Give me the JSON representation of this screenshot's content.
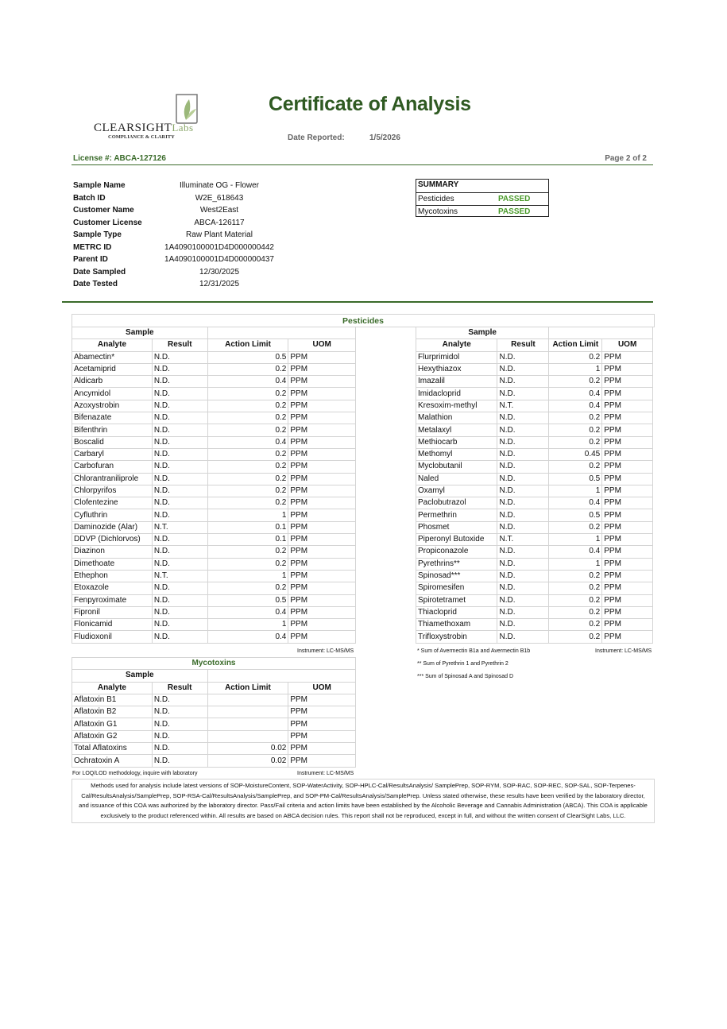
{
  "header": {
    "logo_text": "CLEARSIGHT",
    "logo_suffix": "Labs",
    "logo_tagline": "COMPLIANCE & CLARITY",
    "title": "Certificate of Analysis",
    "date_reported_label": "Date Reported:",
    "date_reported": "1/5/2026",
    "license": "License #: ABCA-127126",
    "page": "Page 2 of 2"
  },
  "sample_info": [
    {
      "k": "Sample Name",
      "v": "Illuminate OG - Flower"
    },
    {
      "k": "Batch ID",
      "v": "W2E_618643"
    },
    {
      "k": "Customer Name",
      "v": "West2East"
    },
    {
      "k": "Customer License",
      "v": "ABCA-126117"
    },
    {
      "k": "Sample Type",
      "v": "Raw Plant Material"
    },
    {
      "k": "METRC ID",
      "v": "1A4090100001D4D000000442"
    },
    {
      "k": "Parent ID",
      "v": "1A4090100001D4D000000437"
    },
    {
      "k": "Date Sampled",
      "v": "12/30/2025"
    },
    {
      "k": "Date Tested",
      "v": "12/31/2025"
    }
  ],
  "summary": {
    "title": "SUMMARY",
    "rows": [
      {
        "name": "Pesticides",
        "status": "PASSED"
      },
      {
        "name": "Mycotoxins",
        "status": "PASSED"
      }
    ],
    "pass_color": "#4a9a2a"
  },
  "pesticides": {
    "title": "Pesticides",
    "sample_label": "Sample",
    "columns": [
      "Analyte",
      "Result",
      "Action Limit",
      "UOM"
    ],
    "left": [
      [
        "Abamectin*",
        "N.D.",
        "0.5",
        "PPM"
      ],
      [
        "Acetamiprid",
        "N.D.",
        "0.2",
        "PPM"
      ],
      [
        "Aldicarb",
        "N.D.",
        "0.4",
        "PPM"
      ],
      [
        "Ancymidol",
        "N.D.",
        "0.2",
        "PPM"
      ],
      [
        "Azoxystrobin",
        "N.D.",
        "0.2",
        "PPM"
      ],
      [
        "Bifenazate",
        "N.D.",
        "0.2",
        "PPM"
      ],
      [
        "Bifenthrin",
        "N.D.",
        "0.2",
        "PPM"
      ],
      [
        "Boscalid",
        "N.D.",
        "0.4",
        "PPM"
      ],
      [
        "Carbaryl",
        "N.D.",
        "0.2",
        "PPM"
      ],
      [
        "Carbofuran",
        "N.D.",
        "0.2",
        "PPM"
      ],
      [
        "Chlorantraniliprole",
        "N.D.",
        "0.2",
        "PPM"
      ],
      [
        "Chlorpyrifos",
        "N.D.",
        "0.2",
        "PPM"
      ],
      [
        "Clofentezine",
        "N.D.",
        "0.2",
        "PPM"
      ],
      [
        "Cyfluthrin",
        "N.D.",
        "1",
        "PPM"
      ],
      [
        "Daminozide (Alar)",
        "N.T.",
        "0.1",
        "PPM"
      ],
      [
        "DDVP (Dichlorvos)",
        "N.D.",
        "0.1",
        "PPM"
      ],
      [
        "Diazinon",
        "N.D.",
        "0.2",
        "PPM"
      ],
      [
        "Dimethoate",
        "N.D.",
        "0.2",
        "PPM"
      ],
      [
        "Ethephon",
        "N.T.",
        "1",
        "PPM"
      ],
      [
        "Etoxazole",
        "N.D.",
        "0.2",
        "PPM"
      ],
      [
        "Fenpyroximate",
        "N.D.",
        "0.5",
        "PPM"
      ],
      [
        "Fipronil",
        "N.D.",
        "0.4",
        "PPM"
      ],
      [
        "Flonicamid",
        "N.D.",
        "1",
        "PPM"
      ],
      [
        "Fludioxonil",
        "N.D.",
        "0.4",
        "PPM"
      ]
    ],
    "right": [
      [
        "Flurprimidol",
        "N.D.",
        "0.2",
        "PPM"
      ],
      [
        "Hexythiazox",
        "N.D.",
        "1",
        "PPM"
      ],
      [
        "Imazalil",
        "N.D.",
        "0.2",
        "PPM"
      ],
      [
        "Imidacloprid",
        "N.D.",
        "0.4",
        "PPM"
      ],
      [
        "Kresoxim-methyl",
        "N.T.",
        "0.4",
        "PPM"
      ],
      [
        "Malathion",
        "N.D.",
        "0.2",
        "PPM"
      ],
      [
        "Metalaxyl",
        "N.D.",
        "0.2",
        "PPM"
      ],
      [
        "Methiocarb",
        "N.D.",
        "0.2",
        "PPM"
      ],
      [
        "Methomyl",
        "N.D.",
        "0.45",
        "PPM"
      ],
      [
        "Myclobutanil",
        "N.D.",
        "0.2",
        "PPM"
      ],
      [
        "Naled",
        "N.D.",
        "0.5",
        "PPM"
      ],
      [
        "Oxamyl",
        "N.D.",
        "1",
        "PPM"
      ],
      [
        "Paclobutrazol",
        "N.D.",
        "0.4",
        "PPM"
      ],
      [
        "Permethrin",
        "N.D.",
        "0.5",
        "PPM"
      ],
      [
        "Phosmet",
        "N.D.",
        "0.2",
        "PPM"
      ],
      [
        "Piperonyl Butoxide",
        "N.T.",
        "1",
        "PPM"
      ],
      [
        "Propiconazole",
        "N.D.",
        "0.4",
        "PPM"
      ],
      [
        "Pyrethrins**",
        "N.D.",
        "1",
        "PPM"
      ],
      [
        "Spinosad***",
        "N.D.",
        "0.2",
        "PPM"
      ],
      [
        "Spiromesifen",
        "N.D.",
        "0.2",
        "PPM"
      ],
      [
        "Spirotetramet",
        "N.D.",
        "0.2",
        "PPM"
      ],
      [
        "Thiacloprid",
        "N.D.",
        "0.2",
        "PPM"
      ],
      [
        "Thiamethoxam",
        "N.D.",
        "0.2",
        "PPM"
      ],
      [
        "Trifloxystrobin",
        "N.D.",
        "0.2",
        "PPM"
      ]
    ],
    "instrument": "Instrument: LC-MS/MS",
    "footnotes": [
      "* Sum of Avermectin B1a and Avermectin B1b",
      "** Sum of Pyrethrin 1 and Pyrethrin 2",
      "*** Sum of Spinosad A and Spinosad D"
    ]
  },
  "mycotoxins": {
    "title": "Mycotoxins",
    "sample_label": "Sample",
    "columns": [
      "Analyte",
      "Result",
      "Action Limit",
      "UOM"
    ],
    "rows": [
      [
        "Aflatoxin B1",
        "N.D.",
        "",
        "PPM"
      ],
      [
        "Aflatoxin B2",
        "N.D.",
        "",
        "PPM"
      ],
      [
        "Aflatoxin G1",
        "N.D.",
        "",
        "PPM"
      ],
      [
        "Aflatoxin G2",
        "N.D.",
        "",
        "PPM"
      ],
      [
        "Total Aflatoxins",
        "N.D.",
        "0.02",
        "PPM"
      ],
      [
        "Ochratoxin A",
        "N.D.",
        "0.02",
        "PPM"
      ]
    ],
    "loq_note": "For LOQ/LOD methodology, inquire with laboratory",
    "instrument": "Instrument: LC-MS/MS"
  },
  "disclaimer": "Methods used for analysis include latest versions of SOP-MoistureContent, SOP-WaterActivity, SOP-HPLC-Cal/ResultsAnalysis/ SamplePrep, SOP-RYM, SOP-RAC, SOP-REC, SOP-SAL, SOP-Terpenes-Cal/ResultsAnalysis/SamplePrep, SOP-RSA-Cal/ResultsAnalysis/SamplePrep, and SOP-PM-Cal/ResultsAnalysis/SamplePrep. Unless stated otherwise, these results have been verified by the laboratory director, and issuance of this COA was authorized by the laboratory director. Pass/Fail criteria and action limits have been established by the Alcoholic Beverage and Cannabis Administration (ABCA). This COA is applicable exclusively to the product referenced within. All results are based on ABCA decision rules. This report shall not be reproduced, except in full, and without the written consent of ClearSight Labs, LLC."
}
